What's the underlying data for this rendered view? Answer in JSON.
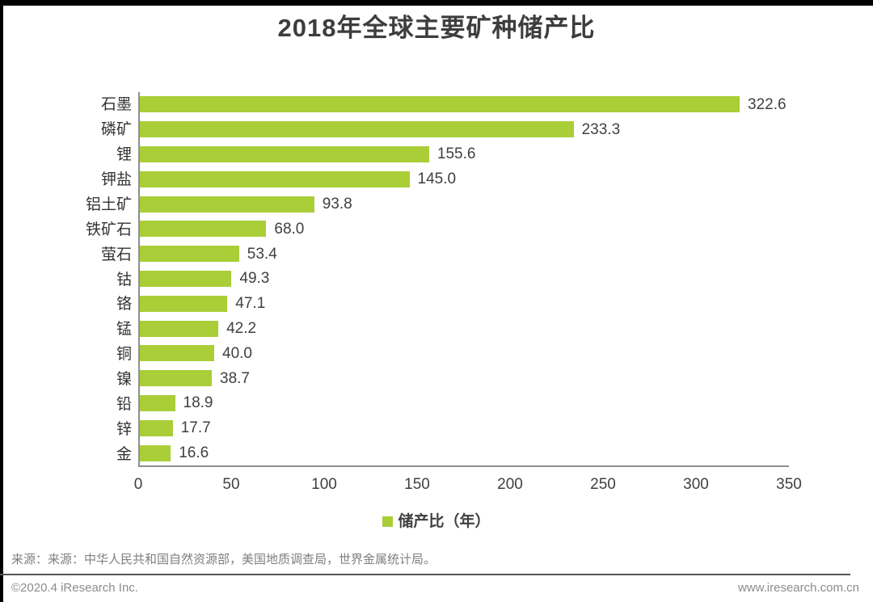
{
  "page_title": "2018年全球主要矿种储产比",
  "chart_data": {
    "type": "bar",
    "orientation": "horizontal",
    "title": "2018年全球主要矿种储产比",
    "categories": [
      "石墨",
      "磷矿",
      "锂",
      "钾盐",
      "铝土矿",
      "铁矿石",
      "萤石",
      "钴",
      "铬",
      "锰",
      "铜",
      "镍",
      "铅",
      "锌",
      "金"
    ],
    "values": [
      322.6,
      233.3,
      155.6,
      145.0,
      93.8,
      68.0,
      53.4,
      49.3,
      47.1,
      42.2,
      40.0,
      38.7,
      18.9,
      17.7,
      16.6
    ],
    "value_format": "one-decimal",
    "xlim": [
      0,
      350
    ],
    "xticks": [
      0,
      50,
      100,
      150,
      200,
      250,
      300,
      350
    ],
    "grid": false,
    "legend_position": "bottom-center",
    "legend": [
      {
        "label": "储产比（年）",
        "color": "#A9CE38"
      }
    ],
    "bar_color": "#A9CE38"
  },
  "source_note": "来源：来源：中华人民共和国自然资源部，美国地质调查局，世界金属统计局。",
  "footer": {
    "copyright": "©2020.4 iResearch Inc.",
    "website": "www.iresearch.com.cn"
  },
  "colors": {
    "bar": "#A9CE38",
    "axis": "#8F8F8F",
    "title_text": "#3D3D3D",
    "label_text": "#404040",
    "category_text": "#333333",
    "source_text": "#7F7F7F",
    "footer_text": "#8C8C8C",
    "divider": "#555555",
    "frame": "#000000"
  }
}
